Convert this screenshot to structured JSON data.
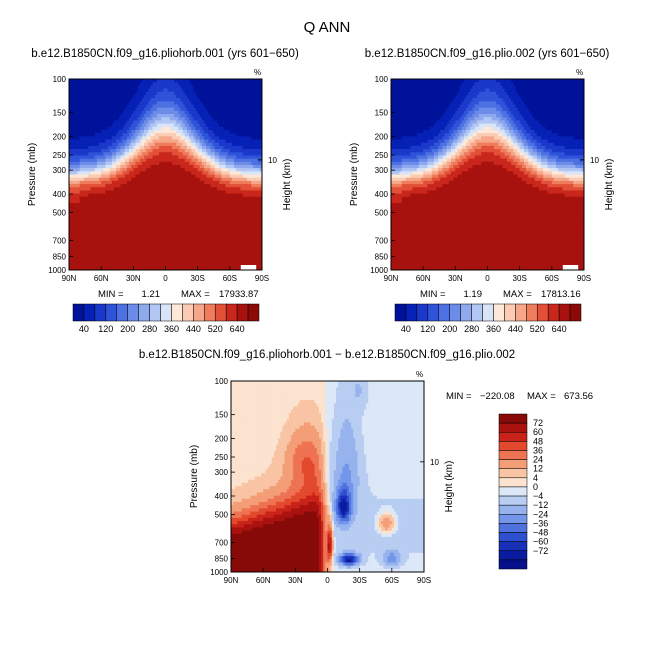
{
  "page": {
    "title": "Q ANN"
  },
  "colors": {
    "pos": [
      "#fbe3cf",
      "#f8c4a4",
      "#f49e78",
      "#ee7352",
      "#e2492d",
      "#c92319",
      "#a9120f",
      "#870a08"
    ],
    "neg": [
      "#dce7f7",
      "#b8cdf2",
      "#97b3ee",
      "#7396ea",
      "#4f72df",
      "#2d4fd0",
      "#1830b8",
      "#0a1ba0",
      "#06108a"
    ],
    "abs": [
      "#01129a",
      "#0621b6",
      "#1a38ca",
      "#2f53d8",
      "#4d70e2",
      "#6c8ce8",
      "#8fa9ef",
      "#b2c7f4",
      "#d8e4f8",
      "#fde8d9",
      "#fbcbb3",
      "#f6a78a",
      "#ee7c5d",
      "#e25038",
      "#c9261c",
      "#a8120e",
      "#8b0a07"
    ]
  },
  "chart_data": [
    {
      "type": "heatmap",
      "name": "panel-left",
      "title": "b.e12.B1850CN.f09_g16.pliohorb.001 (yrs 601−650)",
      "xlabel": "",
      "ylabel": "Pressure (mb)",
      "y2label": "Height (km)",
      "x_ticks": [
        "90N",
        "60N",
        "30N",
        "0",
        "30S",
        "60S",
        "90S"
      ],
      "y_ticks": [
        "100",
        "150",
        "200",
        "250",
        "300",
        "400",
        "500",
        "700",
        "850",
        "1000"
      ],
      "y2_ticks": [
        "10"
      ],
      "corner_label": "%",
      "min_label": "MIN =",
      "min_value": "1.21",
      "max_label": "MAX =",
      "max_value": "17933.87",
      "field": "absolute",
      "colorbar_labels": [
        "40",
        "120",
        "200",
        "280",
        "360",
        "440",
        "520",
        "640"
      ]
    },
    {
      "type": "heatmap",
      "name": "panel-right",
      "title": "b.e12.B1850CN.f09_g16.plio.002 (yrs 601−650)",
      "xlabel": "",
      "ylabel": "Pressure (mb)",
      "y2label": "Height (km)",
      "x_ticks": [
        "90N",
        "60N",
        "30N",
        "0",
        "30S",
        "60S",
        "90S"
      ],
      "y_ticks": [
        "100",
        "150",
        "200",
        "250",
        "300",
        "400",
        "500",
        "700",
        "850",
        "1000"
      ],
      "y2_ticks": [
        "10"
      ],
      "corner_label": "%",
      "min_label": "MIN =",
      "min_value": "1.19",
      "max_label": "MAX =",
      "max_value": "17813.16",
      "field": "absolute",
      "colorbar_labels": [
        "40",
        "120",
        "200",
        "280",
        "360",
        "440",
        "520",
        "640"
      ]
    },
    {
      "type": "heatmap",
      "name": "panel-diff",
      "title": "b.e12.B1850CN.f09_g16.pliohorb.001 − b.e12.B1850CN.f09_g16.plio.002",
      "xlabel": "",
      "ylabel": "Pressure (mb)",
      "y2label": "Height (km)",
      "x_ticks": [
        "90N",
        "60N",
        "30N",
        "0",
        "30S",
        "60S",
        "90S"
      ],
      "y_ticks": [
        "100",
        "150",
        "200",
        "250",
        "300",
        "400",
        "500",
        "700",
        "850",
        "1000"
      ],
      "y2_ticks": [
        "10"
      ],
      "corner_label": "%",
      "min_label": "MIN =",
      "min_value": "−220.08",
      "max_label": "MAX =",
      "max_value": "673.56",
      "field": "difference",
      "colorbar_labels": [
        "72",
        "60",
        "48",
        "36",
        "24",
        "12",
        "4",
        "0",
        "−4",
        "−12",
        "−24",
        "−36",
        "−48",
        "−60",
        "−72"
      ]
    }
  ]
}
